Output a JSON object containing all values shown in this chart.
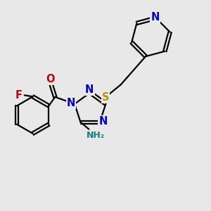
{
  "background_color": "#e8e8e8",
  "bond_color": "#000000",
  "bond_width": 1.6,
  "atom_colors": {
    "N": "#0000cc",
    "O": "#cc0000",
    "F": "#cc0000",
    "S": "#b8960c",
    "NH2": "#008888"
  },
  "font_size_atom": 10.5,
  "font_size_small": 9.0
}
